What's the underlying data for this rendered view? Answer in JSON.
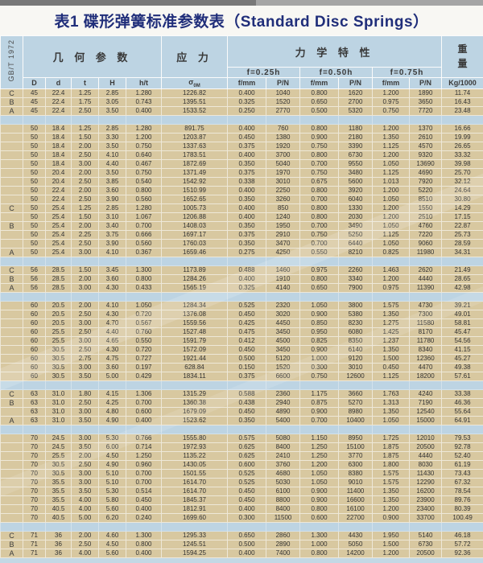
{
  "title": "表1 碟形弹簧标准参数表（Standard Disc Springs）",
  "standard": "GB/T 1972",
  "header": {
    "geometry": "几 何 参 数",
    "stress": "应 力",
    "mechanical": "力 学 特 性",
    "weight": [
      "重",
      "量"
    ],
    "deflections": [
      "f=0.25h",
      "f=0.50h",
      "f=0.75h"
    ],
    "columns": [
      "D",
      "d",
      "t",
      "H",
      "h/t",
      "σ0M",
      "f/mm",
      "P/N",
      "f/mm",
      "P/N",
      "f/mm",
      "P/N",
      "Kg/1000"
    ]
  },
  "colors": {
    "header_bg": "#bdd4e3",
    "row_bg": "#d8c8a0",
    "title_text": "#202e7a",
    "grid_line": "#eee8d8"
  },
  "groups": [
    {
      "rows": [
        [
          "C",
          "45",
          "22.4",
          "1.25",
          "2.85",
          "1.280",
          "1226.82",
          "0.400",
          "1040",
          "0.800",
          "1620",
          "1.200",
          "1890",
          "11.74"
        ],
        [
          "B",
          "45",
          "22.4",
          "1.75",
          "3.05",
          "0.743",
          "1395.51",
          "0.325",
          "1520",
          "0.650",
          "2700",
          "0.975",
          "3650",
          "16.43"
        ],
        [
          "A",
          "45",
          "22.4",
          "2.50",
          "3.50",
          "0.400",
          "1533.52",
          "0.250",
          "2770",
          "0.500",
          "5320",
          "0.750",
          "7720",
          "23.48"
        ]
      ]
    },
    {
      "rows": [
        [
          "",
          "50",
          "18.4",
          "1.25",
          "2.85",
          "1.280",
          "891.75",
          "0.400",
          "760",
          "0.800",
          "1180",
          "1.200",
          "1370",
          "16.66"
        ],
        [
          "",
          "50",
          "18.4",
          "1.50",
          "3.30",
          "1.200",
          "1203.87",
          "0.450",
          "1380",
          "0.900",
          "2180",
          "1.350",
          "2610",
          "19.99"
        ],
        [
          "",
          "50",
          "18.4",
          "2.00",
          "3.50",
          "0.750",
          "1337.63",
          "0.375",
          "1920",
          "0.750",
          "3390",
          "1.125",
          "4570",
          "26.65"
        ],
        [
          "",
          "50",
          "18.4",
          "2.50",
          "4.10",
          "0.640",
          "1783.51",
          "0.400",
          "3700",
          "0.800",
          "6730",
          "1.200",
          "9320",
          "33.32"
        ],
        [
          "",
          "50",
          "18.4",
          "3.00",
          "4.40",
          "0.467",
          "1872.69",
          "0.350",
          "5040",
          "0.700",
          "9550",
          "1.050",
          "13690",
          "39.98"
        ],
        [
          "",
          "50",
          "20.4",
          "2.00",
          "3.50",
          "0.750",
          "1371.49",
          "0.375",
          "1970",
          "0.750",
          "3480",
          "1.125",
          "4690",
          "25.70"
        ],
        [
          "",
          "50",
          "20.4",
          "2.50",
          "3.85",
          "0.540",
          "1542.92",
          "0.338",
          "3010",
          "0.675",
          "5600",
          "1.013",
          "7920",
          "32.12"
        ],
        [
          "",
          "50",
          "22.4",
          "2.00",
          "3.60",
          "0.800",
          "1510.99",
          "0.400",
          "2250",
          "0.800",
          "3920",
          "1.200",
          "5220",
          "24.64"
        ],
        [
          "",
          "50",
          "22.4",
          "2.50",
          "3.90",
          "0.560",
          "1652.65",
          "0.350",
          "3260",
          "0.700",
          "6040",
          "1.050",
          "8510",
          "30.80"
        ],
        [
          "C",
          "50",
          "25.4",
          "1.25",
          "2.85",
          "1.280",
          "1005.73",
          "0.400",
          "850",
          "0.800",
          "1330",
          "1.200",
          "1550",
          "14.29"
        ],
        [
          "",
          "50",
          "25.4",
          "1.50",
          "3.10",
          "1.067",
          "1206.88",
          "0.400",
          "1240",
          "0.800",
          "2030",
          "1.200",
          "2510",
          "17.15"
        ],
        [
          "B",
          "50",
          "25.4",
          "2.00",
          "3.40",
          "0.700",
          "1408.03",
          "0.350",
          "1950",
          "0.700",
          "3490",
          "1.050",
          "4760",
          "22.87"
        ],
        [
          "",
          "50",
          "25.4",
          "2.25",
          "3.75",
          "0.666",
          "1697.17",
          "0.375",
          "2910",
          "0.750",
          "5250",
          "1.125",
          "7220",
          "25.73"
        ],
        [
          "",
          "50",
          "25.4",
          "2.50",
          "3.90",
          "0.560",
          "1760.03",
          "0.350",
          "3470",
          "0.700",
          "6440",
          "1.050",
          "9060",
          "28.59"
        ],
        [
          "A",
          "50",
          "25.4",
          "3.00",
          "4.10",
          "0.367",
          "1659.46",
          "0.275",
          "4250",
          "0.550",
          "8210",
          "0.825",
          "11980",
          "34.31"
        ]
      ]
    },
    {
      "rows": [
        [
          "C",
          "56",
          "28.5",
          "1.50",
          "3.45",
          "1.300",
          "1173.89",
          "0.488",
          "1460",
          "0.975",
          "2260",
          "1.463",
          "2620",
          "21.49"
        ],
        [
          "B",
          "56",
          "28.5",
          "2.00",
          "3.60",
          "0.800",
          "1284.26",
          "0.400",
          "1910",
          "0.800",
          "3340",
          "1.200",
          "4440",
          "28.65"
        ],
        [
          "A",
          "56",
          "28.5",
          "3.00",
          "4.30",
          "0.433",
          "1565.19",
          "0.325",
          "4140",
          "0.650",
          "7900",
          "0.975",
          "11390",
          "42.98"
        ]
      ]
    },
    {
      "rows": [
        [
          "",
          "60",
          "20.5",
          "2.00",
          "4.10",
          "1.050",
          "1284.34",
          "0.525",
          "2320",
          "1.050",
          "3800",
          "1.575",
          "4730",
          "39.21"
        ],
        [
          "",
          "60",
          "20.5",
          "2.50",
          "4.30",
          "0.720",
          "1376.08",
          "0.450",
          "3020",
          "0.900",
          "5380",
          "1.350",
          "7300",
          "49.01"
        ],
        [
          "",
          "60",
          "20.5",
          "3.00",
          "4.70",
          "0.567",
          "1559.56",
          "0.425",
          "4450",
          "0.850",
          "8230",
          "1.275",
          "11580",
          "58.81"
        ],
        [
          "",
          "60",
          "25.5",
          "2.50",
          "4.40",
          "0.760",
          "1527.48",
          "0.475",
          "3450",
          "0.950",
          "6080",
          "1.425",
          "8170",
          "45.47"
        ],
        [
          "",
          "60",
          "25.5",
          "3.00",
          "4.65",
          "0.550",
          "1591.79",
          "0.412",
          "4500",
          "0.825",
          "8350",
          "1.237",
          "11780",
          "54.56"
        ],
        [
          "",
          "60",
          "30.5",
          "2.50",
          "4.30",
          "0.720",
          "1572.09",
          "0.450",
          "3450",
          "0.900",
          "6140",
          "1.350",
          "8340",
          "41.15"
        ],
        [
          "",
          "60",
          "30.5",
          "2.75",
          "4.75",
          "0.727",
          "1921.44",
          "0.500",
          "5120",
          "1.000",
          "9120",
          "1.500",
          "12360",
          "45.27"
        ],
        [
          "",
          "60",
          "30.5",
          "3.00",
          "3.60",
          "0.197",
          "628.84",
          "0.150",
          "1520",
          "0.300",
          "3010",
          "0.450",
          "4470",
          "49.38"
        ],
        [
          "",
          "60",
          "30.5",
          "3.50",
          "5.00",
          "0.429",
          "1834.11",
          "0.375",
          "6600",
          "0.750",
          "12600",
          "1.125",
          "18200",
          "57.61"
        ]
      ]
    },
    {
      "rows": [
        [
          "C",
          "63",
          "31.0",
          "1.80",
          "4.15",
          "1.306",
          "1315.29",
          "0.588",
          "2360",
          "1.175",
          "3660",
          "1.763",
          "4240",
          "33.38"
        ],
        [
          "B",
          "63",
          "31.0",
          "2.50",
          "4.25",
          "0.700",
          "1360.38",
          "0.438",
          "2940",
          "0.875",
          "5270",
          "1.313",
          "7190",
          "46.36"
        ],
        [
          "",
          "63",
          "31.0",
          "3.00",
          "4.80",
          "0.600",
          "1679.09",
          "0.450",
          "4890",
          "0.900",
          "8980",
          "1.350",
          "12540",
          "55.64"
        ],
        [
          "A",
          "63",
          "31.0",
          "3.50",
          "4.90",
          "0.400",
          "1523.62",
          "0.350",
          "5400",
          "0.700",
          "10400",
          "1.050",
          "15000",
          "64.91"
        ]
      ]
    },
    {
      "rows": [
        [
          "",
          "70",
          "24.5",
          "3.00",
          "5.30",
          "0.766",
          "1555.80",
          "0.575",
          "5080",
          "1.150",
          "8950",
          "1.725",
          "12010",
          "79.53"
        ],
        [
          "",
          "70",
          "24.5",
          "3.50",
          "6.00",
          "0.714",
          "1972.93",
          "0.625",
          "8400",
          "1.250",
          "15100",
          "1.875",
          "20500",
          "92.78"
        ],
        [
          "",
          "70",
          "25.5",
          "2.00",
          "4.50",
          "1.250",
          "1135.22",
          "0.625",
          "2410",
          "1.250",
          "3770",
          "1.875",
          "4440",
          "52.40"
        ],
        [
          "",
          "70",
          "30.5",
          "2.50",
          "4.90",
          "0.960",
          "1430.05",
          "0.600",
          "3760",
          "1.200",
          "6300",
          "1.800",
          "8030",
          "61.19"
        ],
        [
          "",
          "70",
          "30.5",
          "3.00",
          "5.10",
          "0.700",
          "1501.55",
          "0.525",
          "4680",
          "1.050",
          "8380",
          "1.575",
          "11430",
          "73.43"
        ],
        [
          "",
          "70",
          "35.5",
          "3.00",
          "5.10",
          "0.700",
          "1614.70",
          "0.525",
          "5030",
          "1.050",
          "9010",
          "1.575",
          "12290",
          "67.32"
        ],
        [
          "",
          "70",
          "35.5",
          "3.50",
          "5.30",
          "0.514",
          "1614.70",
          "0.450",
          "6100",
          "0.900",
          "11400",
          "1.350",
          "16200",
          "78.54"
        ],
        [
          "",
          "70",
          "35.5",
          "4.00",
          "5.80",
          "0.450",
          "1845.37",
          "0.450",
          "8800",
          "0.900",
          "16600",
          "1.350",
          "23900",
          "89.76"
        ],
        [
          "",
          "70",
          "40.5",
          "4.00",
          "5.60",
          "0.400",
          "1812.91",
          "0.400",
          "8400",
          "0.800",
          "16100",
          "1.200",
          "23400",
          "80.39"
        ],
        [
          "",
          "70",
          "40.5",
          "5.00",
          "6.20",
          "0.240",
          "1699.60",
          "0.300",
          "11500",
          "0.600",
          "22700",
          "0.900",
          "33700",
          "100.49"
        ]
      ]
    },
    {
      "rows": [
        [
          "C",
          "71",
          "36",
          "2.00",
          "4.60",
          "1.300",
          "1295.33",
          "0.650",
          "2860",
          "1.300",
          "4430",
          "1.950",
          "5140",
          "46.18"
        ],
        [
          "B",
          "71",
          "36",
          "2.50",
          "4.50",
          "0.800",
          "1245.51",
          "0.500",
          "2890",
          "1.000",
          "5050",
          "1.500",
          "6730",
          "57.72"
        ],
        [
          "A",
          "71",
          "36",
          "4.00",
          "5.60",
          "0.400",
          "1594.25",
          "0.400",
          "7400",
          "0.800",
          "14200",
          "1.200",
          "20500",
          "92.36"
        ]
      ]
    }
  ]
}
